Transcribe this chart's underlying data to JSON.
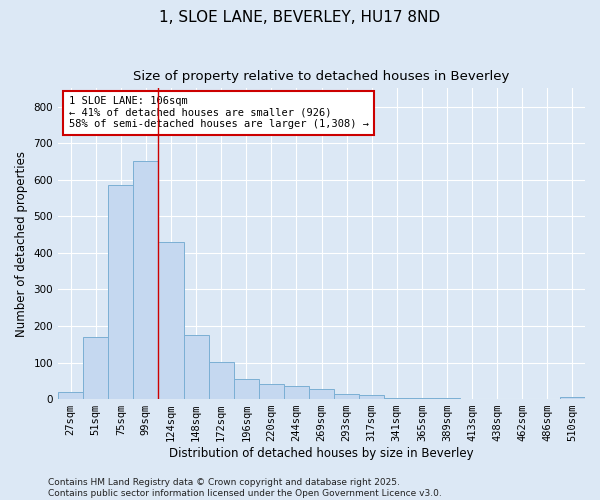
{
  "title1": "1, SLOE LANE, BEVERLEY, HU17 8ND",
  "title2": "Size of property relative to detached houses in Beverley",
  "xlabel": "Distribution of detached houses by size in Beverley",
  "ylabel": "Number of detached properties",
  "bar_labels": [
    "27sqm",
    "51sqm",
    "75sqm",
    "99sqm",
    "124sqm",
    "148sqm",
    "172sqm",
    "196sqm",
    "220sqm",
    "244sqm",
    "269sqm",
    "293sqm",
    "317sqm",
    "341sqm",
    "365sqm",
    "389sqm",
    "413sqm",
    "438sqm",
    "462sqm",
    "486sqm",
    "510sqm"
  ],
  "bar_values": [
    20,
    170,
    585,
    650,
    430,
    175,
    102,
    55,
    42,
    35,
    28,
    14,
    10,
    4,
    3,
    2,
    1,
    1,
    1,
    1,
    5
  ],
  "bar_color": "#c5d8f0",
  "bar_edge_color": "#7bafd4",
  "background_color": "#dce8f5",
  "plot_bg_color": "#dce8f5",
  "grid_color": "#ffffff",
  "vline_color": "#cc0000",
  "vline_x_idx": 3,
  "annotation_text": "1 SLOE LANE: 106sqm\n← 41% of detached houses are smaller (926)\n58% of semi-detached houses are larger (1,308) →",
  "annotation_box_facecolor": "white",
  "annotation_box_edgecolor": "#cc0000",
  "ylim": [
    0,
    850
  ],
  "yticks": [
    0,
    100,
    200,
    300,
    400,
    500,
    600,
    700,
    800
  ],
  "footer": "Contains HM Land Registry data © Crown copyright and database right 2025.\nContains public sector information licensed under the Open Government Licence v3.0.",
  "title_fontsize": 11,
  "subtitle_fontsize": 9.5,
  "axis_label_fontsize": 8.5,
  "tick_fontsize": 7.5,
  "annotation_fontsize": 7.5,
  "footer_fontsize": 6.5
}
